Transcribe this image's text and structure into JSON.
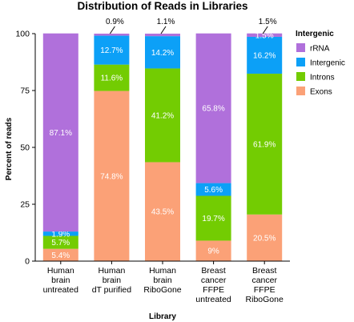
{
  "chart_data": {
    "type": "bar",
    "stacked": true,
    "title": "Distribution of Reads in Libraries",
    "xlabel": "Library",
    "ylabel": "Percent of reads",
    "ylim": [
      0,
      100
    ],
    "yticks": [
      "0",
      "25",
      "50",
      "75",
      "100"
    ],
    "legend_title": "Intergenic",
    "legend_position": "right",
    "categories": [
      [
        "Human",
        "brain",
        "untreated"
      ],
      [
        "Human",
        "brain",
        "dT purified"
      ],
      [
        "Human",
        "brain",
        "RiboGone"
      ],
      [
        "Breast",
        "cancer",
        "FFPE",
        "untreated"
      ],
      [
        "Breast",
        "cancer",
        "FFPE",
        "RiboGone"
      ]
    ],
    "series": [
      {
        "name": "Exons",
        "color": "#FBA177",
        "values": [
          5.4,
          74.8,
          43.5,
          9,
          20.5
        ],
        "labels": [
          "5.4%",
          "74.8%",
          "43.5%",
          "9%",
          "20.5%"
        ]
      },
      {
        "name": "Introns",
        "color": "#73CC02",
        "values": [
          5.7,
          11.6,
          41.2,
          19.7,
          61.9
        ],
        "labels": [
          "5.7%",
          "11.6%",
          "41.2%",
          "19.7%",
          "61.9%"
        ]
      },
      {
        "name": "Intergenic",
        "color": "#0CA0F7",
        "values": [
          1.9,
          12.7,
          14.2,
          5.6,
          16.2
        ],
        "labels": [
          "1.9%",
          "12.7%",
          "14.2%",
          "5.6%",
          "16.2%"
        ]
      },
      {
        "name": "rRNA",
        "color": "#B070DB",
        "values": [
          87.1,
          0.9,
          1.1,
          65.8,
          1.5
        ],
        "labels": [
          "87.1%",
          "0.9%",
          "1.1%",
          "65.8%",
          "1.5%"
        ]
      }
    ],
    "outside_labels": [
      null,
      "0.9%",
      "1.1%",
      null,
      "1.5%"
    ],
    "legend_order": [
      "rRNA",
      "Intergenic",
      "Introns",
      "Exons"
    ]
  }
}
